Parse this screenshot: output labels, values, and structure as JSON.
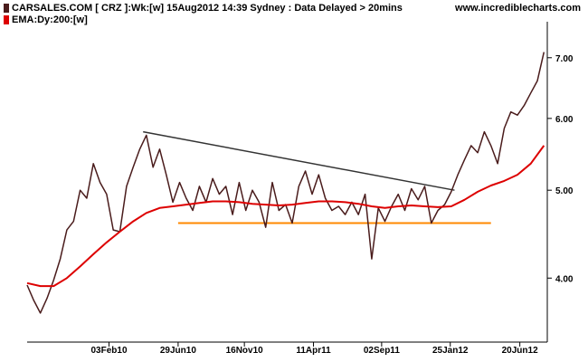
{
  "header": {
    "security_line": "CARSALES.COM [ CRZ ]:Wk:[w]  15Aug2012 14:39 Sydney : Data Delayed > 20mins",
    "ema_line": "EMA:Dy:200:[w]",
    "brand": "www.incrediblecharts.com"
  },
  "colors": {
    "price": "#4a1c1c",
    "ema": "#dd0000",
    "trendline": "#333333",
    "support": "#ff8800",
    "axis": "#000000"
  },
  "chart_data": {
    "type": "line",
    "title": "CARSALES.COM [ CRZ ]:Wk:[w]  15Aug2012 14:39 Sydney : Data Delayed > 20mins",
    "scale": "log",
    "ylim": [
      3.4,
      7.6
    ],
    "y_ticks": [
      4.0,
      5.0,
      6.0,
      7.0
    ],
    "y_tick_labels": [
      "4.00",
      "5.00",
      "6.00",
      "7.00"
    ],
    "x_range": [
      "2009-08-14",
      "2012-08-17"
    ],
    "x_ticks": [
      {
        "date": "2010-02-03",
        "label": "03Feb10"
      },
      {
        "date": "2010-06-29",
        "label": "29Jun10"
      },
      {
        "date": "2010-11-16",
        "label": "16Nov10"
      },
      {
        "date": "2011-04-11",
        "label": "11Apr11"
      },
      {
        "date": "2011-09-02",
        "label": "02Sep11"
      },
      {
        "date": "2012-01-25",
        "label": "25Jan12"
      },
      {
        "date": "2012-06-20",
        "label": "20Jun12"
      }
    ],
    "series": [
      {
        "name": "CARSALES.COM [ CRZ ]:Wk:[w]",
        "points": [
          [
            "2009-08-14",
            3.93
          ],
          [
            "2009-08-28",
            3.78
          ],
          [
            "2009-09-11",
            3.66
          ],
          [
            "2009-09-25",
            3.8
          ],
          [
            "2009-10-09",
            3.98
          ],
          [
            "2009-10-23",
            4.2
          ],
          [
            "2009-11-06",
            4.52
          ],
          [
            "2009-11-20",
            4.62
          ],
          [
            "2009-12-04",
            5.0
          ],
          [
            "2009-12-18",
            4.9
          ],
          [
            "2010-01-01",
            5.35
          ],
          [
            "2010-01-15",
            5.1
          ],
          [
            "2010-01-29",
            4.95
          ],
          [
            "2010-02-12",
            4.52
          ],
          [
            "2010-02-26",
            4.5
          ],
          [
            "2010-03-12",
            5.05
          ],
          [
            "2010-03-26",
            5.3
          ],
          [
            "2010-04-09",
            5.55
          ],
          [
            "2010-04-23",
            5.75
          ],
          [
            "2010-05-07",
            5.3
          ],
          [
            "2010-05-21",
            5.55
          ],
          [
            "2010-06-04",
            5.2
          ],
          [
            "2010-06-18",
            4.85
          ],
          [
            "2010-07-02",
            5.1
          ],
          [
            "2010-07-16",
            4.9
          ],
          [
            "2010-07-30",
            4.75
          ],
          [
            "2010-08-13",
            5.05
          ],
          [
            "2010-08-27",
            4.85
          ],
          [
            "2010-09-10",
            5.15
          ],
          [
            "2010-09-24",
            4.95
          ],
          [
            "2010-10-08",
            5.05
          ],
          [
            "2010-10-22",
            4.7
          ],
          [
            "2010-11-05",
            5.1
          ],
          [
            "2010-11-19",
            4.75
          ],
          [
            "2010-12-03",
            5.0
          ],
          [
            "2010-12-17",
            4.85
          ],
          [
            "2010-12-31",
            4.55
          ],
          [
            "2011-01-14",
            5.1
          ],
          [
            "2011-01-28",
            4.75
          ],
          [
            "2011-02-11",
            4.82
          ],
          [
            "2011-02-25",
            4.6
          ],
          [
            "2011-03-11",
            5.05
          ],
          [
            "2011-03-25",
            5.25
          ],
          [
            "2011-04-08",
            4.95
          ],
          [
            "2011-04-22",
            5.2
          ],
          [
            "2011-05-06",
            4.9
          ],
          [
            "2011-05-20",
            4.75
          ],
          [
            "2011-06-03",
            4.8
          ],
          [
            "2011-06-17",
            4.7
          ],
          [
            "2011-07-01",
            4.85
          ],
          [
            "2011-07-15",
            4.7
          ],
          [
            "2011-07-29",
            4.95
          ],
          [
            "2011-08-12",
            4.2
          ],
          [
            "2011-08-26",
            4.78
          ],
          [
            "2011-09-09",
            4.62
          ],
          [
            "2011-09-23",
            4.8
          ],
          [
            "2011-10-07",
            4.95
          ],
          [
            "2011-10-21",
            4.75
          ],
          [
            "2011-11-04",
            5.02
          ],
          [
            "2011-11-18",
            4.88
          ],
          [
            "2011-12-02",
            5.05
          ],
          [
            "2011-12-16",
            4.6
          ],
          [
            "2011-12-30",
            4.75
          ],
          [
            "2012-01-13",
            4.82
          ],
          [
            "2012-01-27",
            4.98
          ],
          [
            "2012-02-10",
            5.2
          ],
          [
            "2012-02-24",
            5.4
          ],
          [
            "2012-03-09",
            5.6
          ],
          [
            "2012-03-23",
            5.5
          ],
          [
            "2012-04-06",
            5.8
          ],
          [
            "2012-04-20",
            5.6
          ],
          [
            "2012-05-04",
            5.35
          ],
          [
            "2012-05-18",
            5.85
          ],
          [
            "2012-06-01",
            6.1
          ],
          [
            "2012-06-15",
            6.05
          ],
          [
            "2012-06-29",
            6.2
          ],
          [
            "2012-07-13",
            6.4
          ],
          [
            "2012-07-27",
            6.6
          ],
          [
            "2012-08-10",
            7.1
          ]
        ]
      },
      {
        "name": "EMA:Dy:200:[w]",
        "points": [
          [
            "2009-08-14",
            3.95
          ],
          [
            "2009-09-11",
            3.92
          ],
          [
            "2009-10-09",
            3.92
          ],
          [
            "2009-11-06",
            4.0
          ],
          [
            "2009-12-04",
            4.12
          ],
          [
            "2010-01-01",
            4.25
          ],
          [
            "2010-01-29",
            4.38
          ],
          [
            "2010-02-26",
            4.5
          ],
          [
            "2010-03-26",
            4.62
          ],
          [
            "2010-04-23",
            4.72
          ],
          [
            "2010-05-21",
            4.78
          ],
          [
            "2010-06-18",
            4.8
          ],
          [
            "2010-07-16",
            4.82
          ],
          [
            "2010-08-13",
            4.84
          ],
          [
            "2010-09-10",
            4.86
          ],
          [
            "2010-10-08",
            4.86
          ],
          [
            "2010-11-05",
            4.85
          ],
          [
            "2010-12-03",
            4.83
          ],
          [
            "2010-12-31",
            4.82
          ],
          [
            "2011-01-28",
            4.81
          ],
          [
            "2011-02-25",
            4.82
          ],
          [
            "2011-03-25",
            4.84
          ],
          [
            "2011-04-22",
            4.86
          ],
          [
            "2011-05-20",
            4.86
          ],
          [
            "2011-06-17",
            4.85
          ],
          [
            "2011-07-15",
            4.83
          ],
          [
            "2011-08-12",
            4.8
          ],
          [
            "2011-09-09",
            4.78
          ],
          [
            "2011-10-07",
            4.8
          ],
          [
            "2011-11-04",
            4.81
          ],
          [
            "2011-12-02",
            4.8
          ],
          [
            "2011-12-30",
            4.79
          ],
          [
            "2012-01-27",
            4.8
          ],
          [
            "2012-02-24",
            4.88
          ],
          [
            "2012-03-23",
            4.98
          ],
          [
            "2012-04-20",
            5.06
          ],
          [
            "2012-05-18",
            5.12
          ],
          [
            "2012-06-15",
            5.2
          ],
          [
            "2012-07-13",
            5.35
          ],
          [
            "2012-08-10",
            5.6
          ]
        ]
      }
    ],
    "annotations": [
      {
        "type": "trendline",
        "from": [
          "2010-04-16",
          5.8
        ],
        "to": [
          "2012-02-03",
          5.0
        ]
      },
      {
        "type": "horizontal",
        "from": [
          "2010-06-29",
          4.6
        ],
        "to": [
          "2012-04-20",
          4.6
        ]
      }
    ],
    "grid": false,
    "legend": "top-left"
  }
}
